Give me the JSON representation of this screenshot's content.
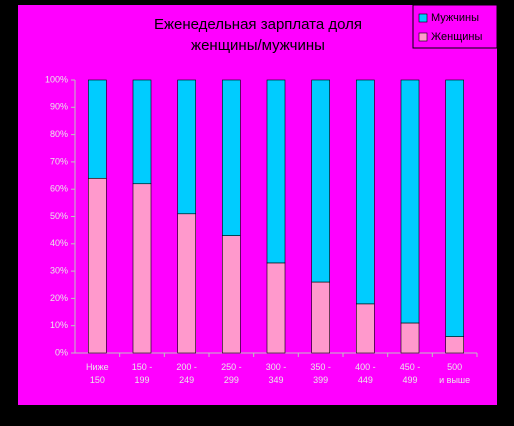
{
  "chart_data": {
    "type": "stacked_bar_100",
    "title": "Еженедельная зарплата доля\nженщины/мужчины",
    "categories": [
      "Ниже\n150",
      "150 -\n199",
      "200 -\n249",
      "250 -\n299",
      "300 -\n349",
      "350 -\n399",
      "400 -\n449",
      "450 -\n499",
      "500\nи выше"
    ],
    "series": [
      {
        "name": "Женщины",
        "color": "#ff99cc",
        "values": [
          64,
          62,
          51,
          43,
          33,
          26,
          18,
          11,
          6
        ]
      },
      {
        "name": "Мужчины",
        "color": "#00ccff",
        "values": [
          36,
          38,
          49,
          57,
          67,
          74,
          82,
          89,
          94
        ]
      }
    ],
    "ylim": [
      0,
      100
    ],
    "yticks": [
      {
        "value": 0,
        "label": "0%"
      },
      {
        "value": 10,
        "label": "10%"
      },
      {
        "value": 20,
        "label": "20%"
      },
      {
        "value": 30,
        "label": "30%"
      },
      {
        "value": 40,
        "label": "40%"
      },
      {
        "value": 50,
        "label": "50%"
      },
      {
        "value": 60,
        "label": "60%"
      },
      {
        "value": 70,
        "label": "70%"
      },
      {
        "value": 80,
        "label": "80%"
      },
      {
        "value": 90,
        "label": "90%"
      },
      {
        "value": 100,
        "label": "100%"
      }
    ],
    "grid": false,
    "legend": "top-right"
  }
}
